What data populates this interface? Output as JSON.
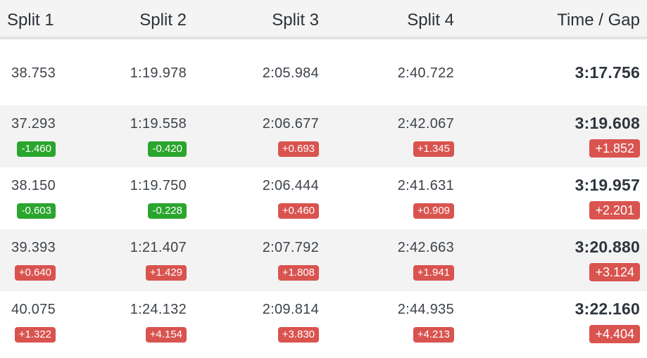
{
  "header": {
    "split1": "Split 1",
    "split2": "Split 2",
    "split3": "Split 3",
    "split4": "Split 4",
    "time_gap": "Time / Gap"
  },
  "rows": [
    {
      "split1": "38.753",
      "split2": "1:19.978",
      "split3": "2:05.984",
      "split4": "2:40.722",
      "time": "3:17.756",
      "d1": "",
      "d2": "",
      "d3": "",
      "d4": "",
      "gap": ""
    },
    {
      "split1": "37.293",
      "split2": "1:19.558",
      "split3": "2:06.677",
      "split4": "2:42.067",
      "time": "3:19.608",
      "d1": "-1.460",
      "d2": "-0.420",
      "d3": "+0.693",
      "d4": "+1.345",
      "gap": "+1.852"
    },
    {
      "split1": "38.150",
      "split2": "1:19.750",
      "split3": "2:06.444",
      "split4": "2:41.631",
      "time": "3:19.957",
      "d1": "-0.603",
      "d2": "-0.228",
      "d3": "+0.460",
      "d4": "+0.909",
      "gap": "+2.201"
    },
    {
      "split1": "39.393",
      "split2": "1:21.407",
      "split3": "2:07.792",
      "split4": "2:42.663",
      "time": "3:20.880",
      "d1": "+0.640",
      "d2": "+1.429",
      "d3": "+1.808",
      "d4": "+1.941",
      "gap": "+3.124"
    },
    {
      "split1": "40.075",
      "split2": "1:24.132",
      "split3": "2:09.814",
      "split4": "2:44.935",
      "time": "3:22.160",
      "d1": "+1.322",
      "d2": "+4.154",
      "d3": "+3.830",
      "d4": "+4.213",
      "gap": "+4.404"
    }
  ],
  "colors": {
    "faster": "#2aa52d",
    "slower": "#d9534f",
    "header_bg": "#f4f4f4",
    "alt_row_bg": "#f3f3f3"
  }
}
